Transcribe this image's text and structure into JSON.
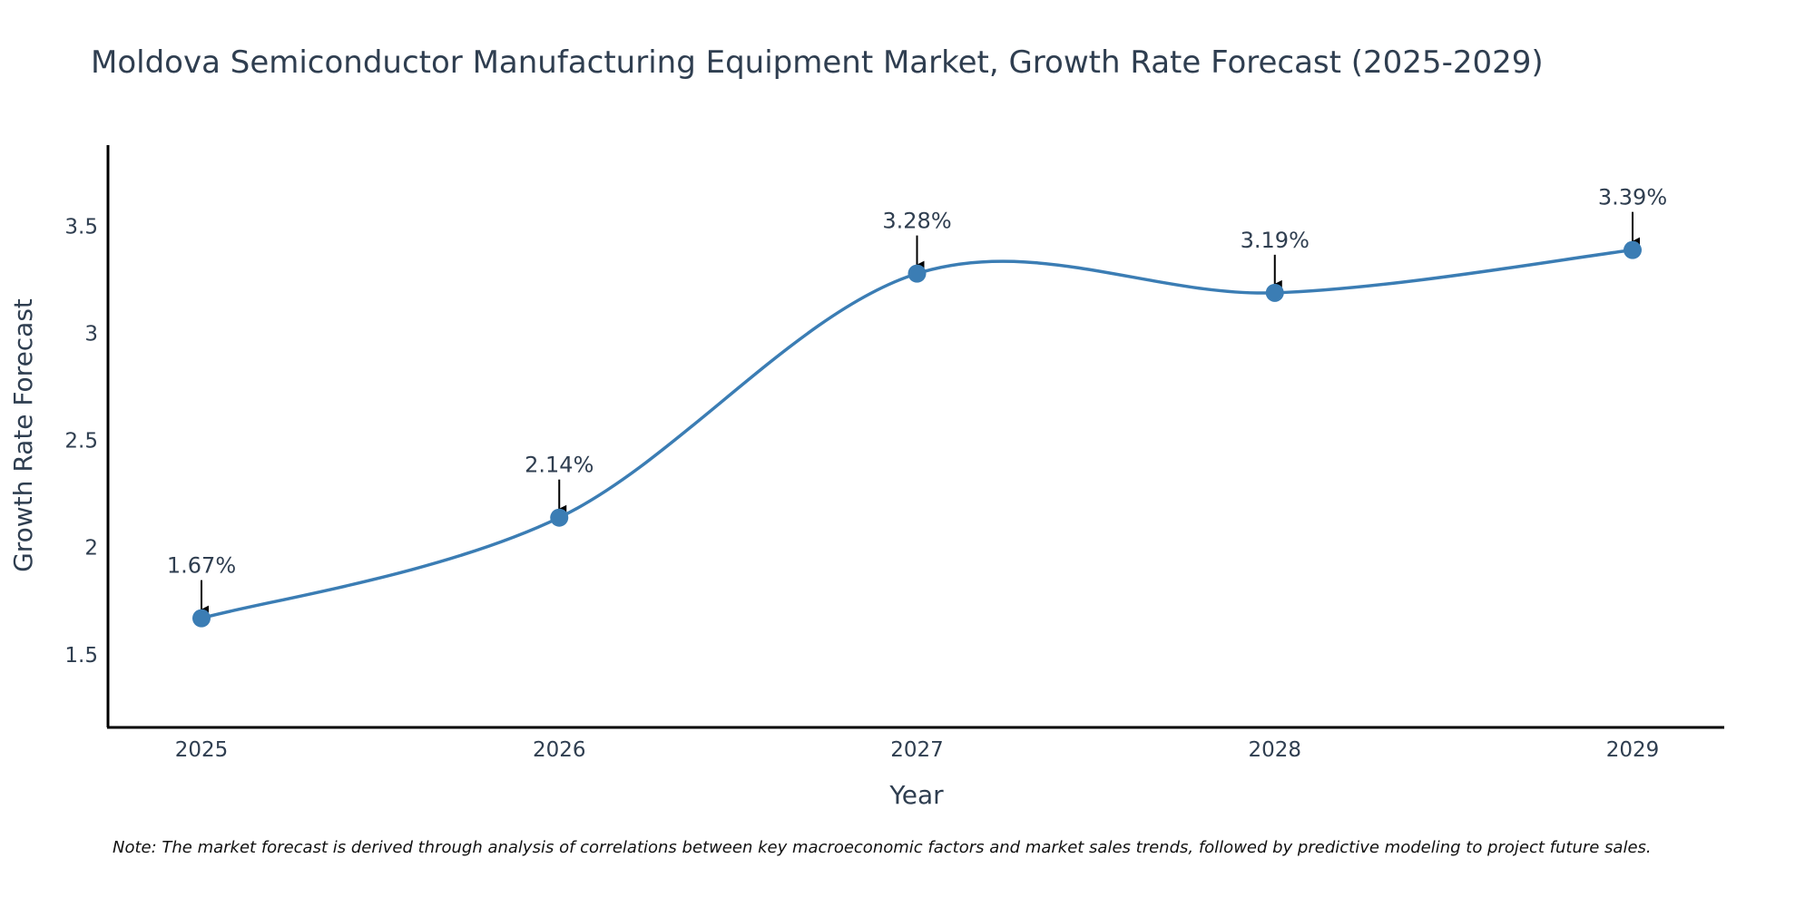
{
  "chart_data": {
    "type": "line",
    "title": "Moldova Semiconductor Manufacturing Equipment Market, Growth Rate Forecast (2025-2029)",
    "xlabel": "Year",
    "ylabel": "Growth Rate Forecast",
    "categories": [
      "2025",
      "2026",
      "2027",
      "2028",
      "2029"
    ],
    "values": [
      1.67,
      2.14,
      3.28,
      3.19,
      3.39
    ],
    "data_labels": [
      "1.67%",
      "2.14%",
      "3.28%",
      "3.19%",
      "3.39%"
    ],
    "ylim": [
      1.16,
      3.88
    ],
    "yticks": [
      1.5,
      2,
      2.5,
      3,
      3.5
    ],
    "ytick_labels": [
      "1.5",
      "2",
      "2.5",
      "3",
      "3.5"
    ],
    "line_shape": "spline",
    "line_color": "#3b7db4",
    "marker_color": "#3b7db4",
    "grid": false,
    "note": "Note: The market forecast is derived through analysis of correlations between key macroeconomic factors and market sales trends, followed by predictive modeling to project future sales."
  }
}
